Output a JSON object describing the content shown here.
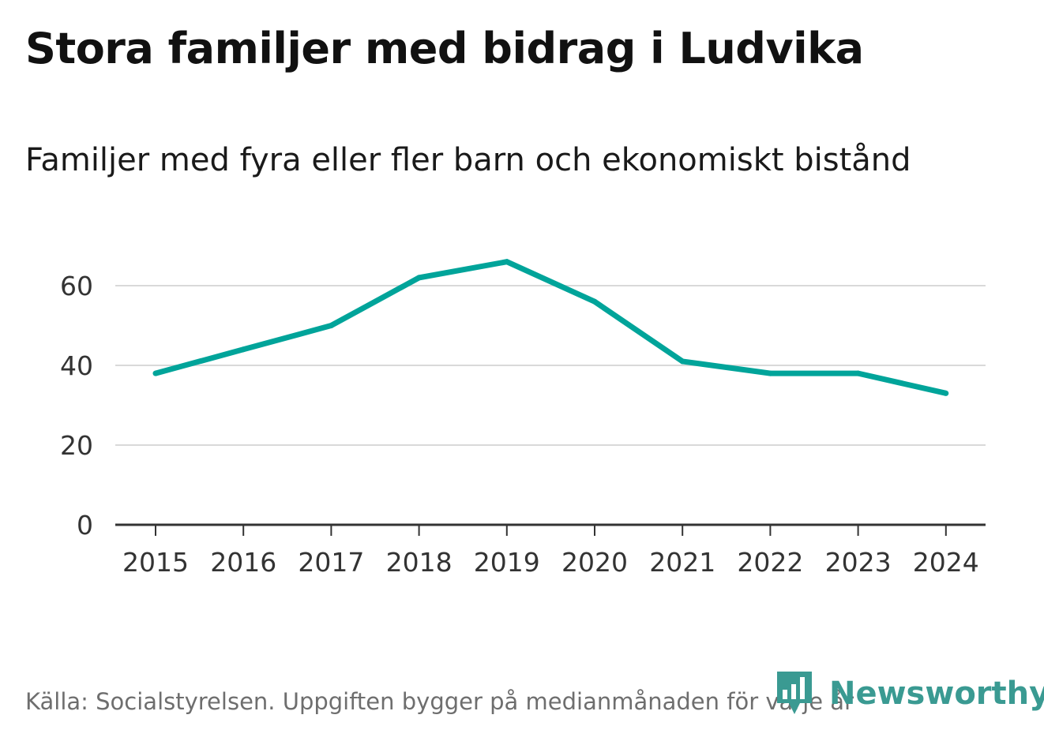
{
  "title": "Stora familjer med bidrag i Ludvika",
  "subtitle": "Familjer med fyra eller fler barn och ekonomiskt bistånd",
  "source": "Källa: Socialstyrelsen. Uppgiften bygger på medianmånaden för varje år",
  "brand": "Newsworthy",
  "colors": {
    "line": "#00a49a",
    "grid": "#d9d9d9",
    "axis": "#333333",
    "brand": "#3a9a92"
  },
  "chart_data": {
    "type": "line",
    "title": "Stora familjer med bidrag i Ludvika",
    "subtitle": "Familjer med fyra eller fler barn och ekonomiskt bistånd",
    "xlabel": "",
    "ylabel": "",
    "categories": [
      "2015",
      "2016",
      "2017",
      "2018",
      "2019",
      "2020",
      "2021",
      "2022",
      "2023",
      "2024"
    ],
    "series": [
      {
        "name": "Familjer med fyra eller fler barn och ekonomiskt bistånd",
        "values": [
          38,
          44,
          50,
          62,
          66,
          56,
          41,
          38,
          38,
          33
        ]
      }
    ],
    "yticks": [
      0,
      20,
      40,
      60
    ],
    "ylim": [
      0,
      70
    ],
    "grid": true
  }
}
